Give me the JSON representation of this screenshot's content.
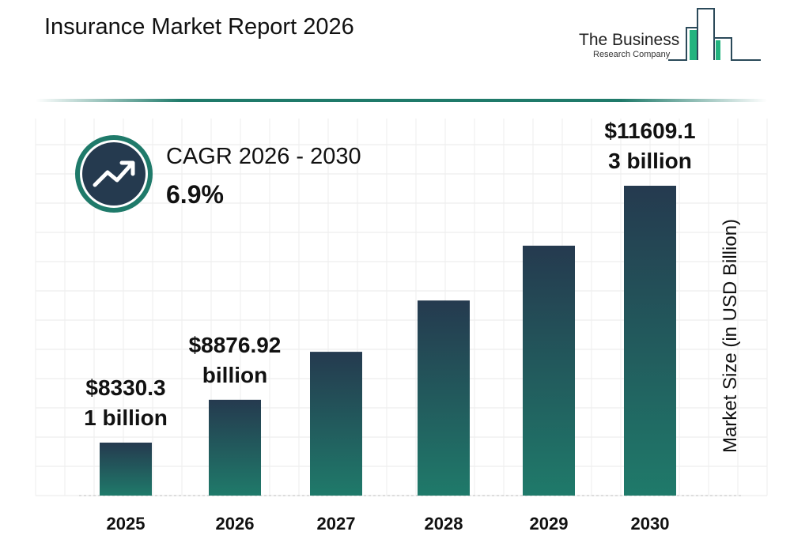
{
  "header": {
    "title": "Insurance Market Report 2026"
  },
  "logo": {
    "line1": "The Business",
    "line2": "Research Company"
  },
  "cagr": {
    "label": "CAGR 2026 - 2030",
    "value": "6.9%",
    "icon": "trend-up-icon"
  },
  "colors": {
    "bar_top": "#253a4f",
    "bar_bottom": "#1f7a6a",
    "accent": "#1f7a6a",
    "grid": "#e6e6e6"
  },
  "chart_data": {
    "type": "bar",
    "title": "Insurance Market Report 2026",
    "xlabel": "",
    "ylabel": "Market Size (in USD Billion)",
    "categories": [
      "2025",
      "2026",
      "2027",
      "2028",
      "2029",
      "2030"
    ],
    "values": [
      8330.31,
      8876.92,
      9489.43,
      10144.2,
      10844.15,
      11609.13
    ],
    "data_labels": [
      [
        "$8330.3",
        "1 billion"
      ],
      [
        "$8876.92",
        "billion"
      ],
      null,
      null,
      null,
      [
        "$11609.1",
        "3 billion"
      ]
    ],
    "grid": true,
    "legend": "none"
  }
}
